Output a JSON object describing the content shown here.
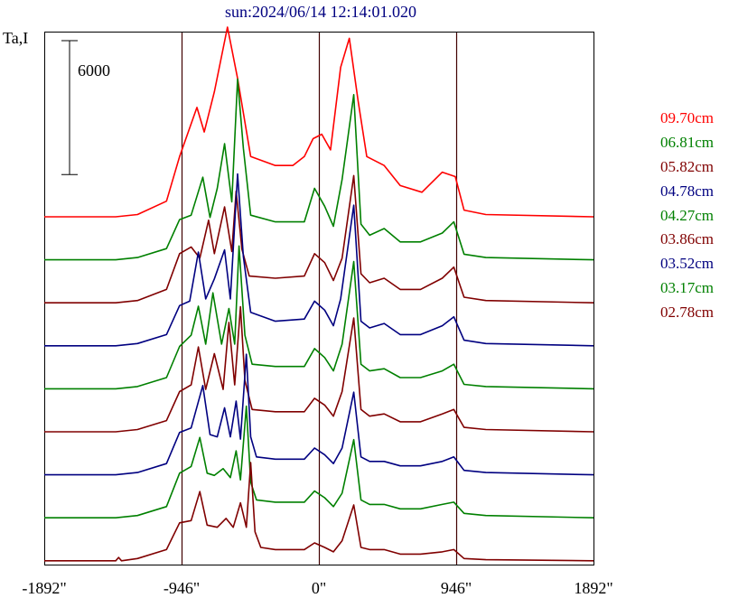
{
  "chart_data": {
    "type": "line",
    "title": "sun:2024/06/14 12:14:01.020",
    "ylabel": "Ta,I",
    "scale_bar_label": "6000",
    "scale_bar_value": 6000,
    "xlim": [
      -1892,
      1892
    ],
    "x_ticks": [
      {
        "value": -1892,
        "label": "-1892\""
      },
      {
        "value": -946,
        "label": "-946\""
      },
      {
        "value": 0,
        "label": "0\""
      },
      {
        "value": 946,
        "label": "946\""
      },
      {
        "value": 1892,
        "label": "1892\""
      }
    ],
    "vertical_lines": [
      -946,
      0,
      946
    ],
    "grid": false,
    "legend_position": "right",
    "series": [
      {
        "name": "09.70cm",
        "color": "#ff0000",
        "baseline": 0,
        "points": [
          [
            -1892,
            0
          ],
          [
            -1400,
            0
          ],
          [
            -1250,
            100
          ],
          [
            -1050,
            700
          ],
          [
            -960,
            2700
          ],
          [
            -900,
            3800
          ],
          [
            -840,
            4900
          ],
          [
            -790,
            3800
          ],
          [
            -720,
            5600
          ],
          [
            -630,
            8500
          ],
          [
            -560,
            6200
          ],
          [
            -470,
            2700
          ],
          [
            -300,
            2300
          ],
          [
            -180,
            2300
          ],
          [
            -100,
            2700
          ],
          [
            -40,
            3500
          ],
          [
            20,
            3700
          ],
          [
            80,
            3000
          ],
          [
            150,
            6700
          ],
          [
            210,
            8000
          ],
          [
            270,
            5200
          ],
          [
            330,
            2700
          ],
          [
            450,
            2300
          ],
          [
            560,
            1400
          ],
          [
            710,
            1100
          ],
          [
            850,
            2000
          ],
          [
            940,
            1800
          ],
          [
            1000,
            300
          ],
          [
            1150,
            100
          ],
          [
            1892,
            0
          ]
        ]
      },
      {
        "name": "06.81cm",
        "color": "#008000",
        "baseline": 0,
        "points": [
          [
            -1892,
            0
          ],
          [
            -1400,
            0
          ],
          [
            -1250,
            100
          ],
          [
            -1050,
            500
          ],
          [
            -960,
            1800
          ],
          [
            -880,
            2000
          ],
          [
            -800,
            3700
          ],
          [
            -750,
            1900
          ],
          [
            -700,
            3200
          ],
          [
            -650,
            5200
          ],
          [
            -600,
            2600
          ],
          [
            -560,
            8100
          ],
          [
            -520,
            5000
          ],
          [
            -470,
            2000
          ],
          [
            -300,
            1700
          ],
          [
            -100,
            1700
          ],
          [
            -30,
            3200
          ],
          [
            40,
            2400
          ],
          [
            100,
            1500
          ],
          [
            160,
            3600
          ],
          [
            240,
            7400
          ],
          [
            290,
            1600
          ],
          [
            350,
            1100
          ],
          [
            450,
            1400
          ],
          [
            560,
            800
          ],
          [
            700,
            800
          ],
          [
            850,
            1200
          ],
          [
            930,
            1700
          ],
          [
            1000,
            250
          ],
          [
            1150,
            100
          ],
          [
            1892,
            0
          ]
        ]
      },
      {
        "name": "05.82cm",
        "color": "#800000",
        "baseline": 0,
        "points": [
          [
            -1892,
            0
          ],
          [
            -1400,
            0
          ],
          [
            -1250,
            100
          ],
          [
            -1050,
            600
          ],
          [
            -960,
            2200
          ],
          [
            -880,
            2500
          ],
          [
            -820,
            2000
          ],
          [
            -760,
            3700
          ],
          [
            -720,
            2200
          ],
          [
            -650,
            4300
          ],
          [
            -600,
            2300
          ],
          [
            -570,
            5000
          ],
          [
            -530,
            2400
          ],
          [
            -480,
            1200
          ],
          [
            -300,
            1100
          ],
          [
            -100,
            1200
          ],
          [
            -30,
            2200
          ],
          [
            40,
            1800
          ],
          [
            100,
            1000
          ],
          [
            160,
            2000
          ],
          [
            240,
            5700
          ],
          [
            290,
            1300
          ],
          [
            350,
            900
          ],
          [
            450,
            1100
          ],
          [
            560,
            600
          ],
          [
            700,
            600
          ],
          [
            850,
            1100
          ],
          [
            930,
            1600
          ],
          [
            1000,
            250
          ],
          [
            1150,
            100
          ],
          [
            1892,
            0
          ]
        ]
      },
      {
        "name": "04.78cm",
        "color": "#000080",
        "baseline": 0,
        "points": [
          [
            -1892,
            0
          ],
          [
            -1400,
            0
          ],
          [
            -1250,
            100
          ],
          [
            -1050,
            500
          ],
          [
            -960,
            1800
          ],
          [
            -890,
            2000
          ],
          [
            -830,
            4200
          ],
          [
            -780,
            2100
          ],
          [
            -720,
            3000
          ],
          [
            -650,
            4300
          ],
          [
            -610,
            2100
          ],
          [
            -560,
            7700
          ],
          [
            -520,
            4000
          ],
          [
            -470,
            1500
          ],
          [
            -300,
            1100
          ],
          [
            -100,
            1200
          ],
          [
            -30,
            2000
          ],
          [
            40,
            1600
          ],
          [
            100,
            900
          ],
          [
            150,
            2100
          ],
          [
            240,
            6300
          ],
          [
            290,
            1100
          ],
          [
            350,
            800
          ],
          [
            450,
            1000
          ],
          [
            560,
            500
          ],
          [
            700,
            500
          ],
          [
            850,
            900
          ],
          [
            930,
            1300
          ],
          [
            1000,
            250
          ],
          [
            1150,
            100
          ],
          [
            1892,
            0
          ]
        ]
      },
      {
        "name": "04.27cm",
        "color": "#008000",
        "baseline": 0,
        "points": [
          [
            -1892,
            0
          ],
          [
            -1400,
            0
          ],
          [
            -1250,
            100
          ],
          [
            -1050,
            500
          ],
          [
            -960,
            1900
          ],
          [
            -880,
            2400
          ],
          [
            -830,
            3700
          ],
          [
            -780,
            2000
          ],
          [
            -730,
            4300
          ],
          [
            -670,
            2000
          ],
          [
            -620,
            3600
          ],
          [
            -580,
            2000
          ],
          [
            -550,
            6400
          ],
          [
            -510,
            2400
          ],
          [
            -460,
            1100
          ],
          [
            -300,
            1000
          ],
          [
            -100,
            1000
          ],
          [
            -30,
            1800
          ],
          [
            40,
            1400
          ],
          [
            100,
            800
          ],
          [
            160,
            2000
          ],
          [
            240,
            5700
          ],
          [
            290,
            1100
          ],
          [
            350,
            800
          ],
          [
            450,
            900
          ],
          [
            560,
            500
          ],
          [
            700,
            500
          ],
          [
            850,
            800
          ],
          [
            930,
            1100
          ],
          [
            1000,
            200
          ],
          [
            1150,
            100
          ],
          [
            1892,
            0
          ]
        ]
      },
      {
        "name": "03.86cm",
        "color": "#800000",
        "baseline": 0,
        "points": [
          [
            -1892,
            0
          ],
          [
            -1400,
            0
          ],
          [
            -1250,
            100
          ],
          [
            -1050,
            500
          ],
          [
            -960,
            1800
          ],
          [
            -880,
            2100
          ],
          [
            -830,
            3800
          ],
          [
            -780,
            1900
          ],
          [
            -720,
            3500
          ],
          [
            -660,
            1900
          ],
          [
            -620,
            4900
          ],
          [
            -580,
            2100
          ],
          [
            -540,
            5600
          ],
          [
            -510,
            2300
          ],
          [
            -460,
            1000
          ],
          [
            -300,
            900
          ],
          [
            -100,
            900
          ],
          [
            -30,
            1500
          ],
          [
            40,
            1200
          ],
          [
            100,
            700
          ],
          [
            160,
            1800
          ],
          [
            240,
            5100
          ],
          [
            290,
            1000
          ],
          [
            350,
            700
          ],
          [
            450,
            800
          ],
          [
            560,
            450
          ],
          [
            700,
            450
          ],
          [
            850,
            800
          ],
          [
            930,
            1000
          ],
          [
            1000,
            200
          ],
          [
            1150,
            100
          ],
          [
            1892,
            0
          ]
        ]
      },
      {
        "name": "03.52cm",
        "color": "#000080",
        "baseline": 0,
        "points": [
          [
            -1892,
            0
          ],
          [
            -1400,
            0
          ],
          [
            -1250,
            100
          ],
          [
            -1050,
            500
          ],
          [
            -960,
            1900
          ],
          [
            -880,
            2100
          ],
          [
            -800,
            4000
          ],
          [
            -750,
            1800
          ],
          [
            -700,
            1700
          ],
          [
            -650,
            3000
          ],
          [
            -610,
            1700
          ],
          [
            -570,
            3300
          ],
          [
            -540,
            1600
          ],
          [
            -500,
            5400
          ],
          [
            -470,
            1700
          ],
          [
            -430,
            800
          ],
          [
            -300,
            700
          ],
          [
            -100,
            700
          ],
          [
            -30,
            1200
          ],
          [
            40,
            900
          ],
          [
            100,
            500
          ],
          [
            160,
            1200
          ],
          [
            240,
            3700
          ],
          [
            290,
            800
          ],
          [
            350,
            600
          ],
          [
            450,
            600
          ],
          [
            560,
            400
          ],
          [
            700,
            400
          ],
          [
            850,
            600
          ],
          [
            930,
            800
          ],
          [
            1000,
            200
          ],
          [
            1150,
            100
          ],
          [
            1892,
            0
          ]
        ]
      },
      {
        "name": "03.17cm",
        "color": "#008000",
        "baseline": 0,
        "points": [
          [
            -1892,
            0
          ],
          [
            -1400,
            0
          ],
          [
            -1250,
            100
          ],
          [
            -1050,
            500
          ],
          [
            -960,
            2000
          ],
          [
            -880,
            2300
          ],
          [
            -820,
            3600
          ],
          [
            -770,
            2000
          ],
          [
            -720,
            1900
          ],
          [
            -660,
            2200
          ],
          [
            -610,
            1800
          ],
          [
            -570,
            3000
          ],
          [
            -540,
            1700
          ],
          [
            -500,
            5000
          ],
          [
            -470,
            1600
          ],
          [
            -430,
            800
          ],
          [
            -300,
            700
          ],
          [
            -100,
            700
          ],
          [
            -30,
            1200
          ],
          [
            40,
            900
          ],
          [
            100,
            500
          ],
          [
            160,
            1100
          ],
          [
            240,
            3500
          ],
          [
            290,
            800
          ],
          [
            350,
            600
          ],
          [
            450,
            600
          ],
          [
            560,
            400
          ],
          [
            700,
            400
          ],
          [
            850,
            600
          ],
          [
            930,
            700
          ],
          [
            1000,
            200
          ],
          [
            1150,
            100
          ],
          [
            1892,
            0
          ]
        ]
      },
      {
        "name": "02.78cm",
        "color": "#800000",
        "baseline": 0,
        "points": [
          [
            -1892,
            0
          ],
          [
            -1400,
            0
          ],
          [
            -1380,
            150
          ],
          [
            -1360,
            0
          ],
          [
            -1250,
            100
          ],
          [
            -1050,
            500
          ],
          [
            -960,
            1700
          ],
          [
            -880,
            1800
          ],
          [
            -820,
            3100
          ],
          [
            -770,
            1600
          ],
          [
            -700,
            1500
          ],
          [
            -640,
            1900
          ],
          [
            -590,
            1500
          ],
          [
            -540,
            2600
          ],
          [
            -500,
            1500
          ],
          [
            -470,
            4400
          ],
          [
            -440,
            1300
          ],
          [
            -400,
            600
          ],
          [
            -300,
            500
          ],
          [
            -100,
            500
          ],
          [
            -30,
            800
          ],
          [
            40,
            600
          ],
          [
            100,
            400
          ],
          [
            160,
            900
          ],
          [
            240,
            2500
          ],
          [
            290,
            600
          ],
          [
            350,
            500
          ],
          [
            450,
            500
          ],
          [
            560,
            300
          ],
          [
            700,
            300
          ],
          [
            850,
            400
          ],
          [
            930,
            500
          ],
          [
            1000,
            100
          ],
          [
            1150,
            50
          ],
          [
            1892,
            0
          ]
        ]
      }
    ]
  }
}
